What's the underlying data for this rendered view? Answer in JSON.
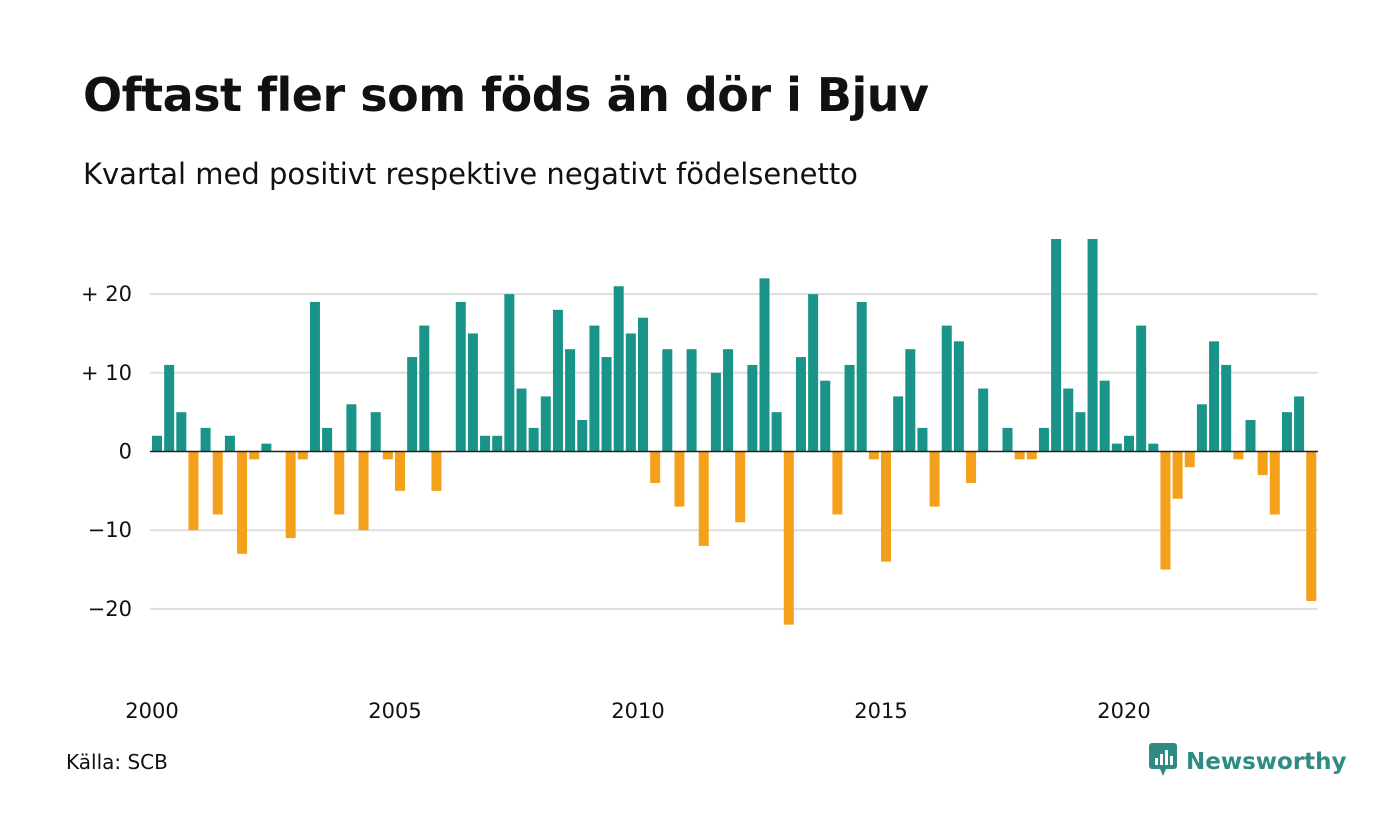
{
  "header": {
    "title": "Oftast fler som föds än dör i Bjuv",
    "subtitle": "Kvartal med positivt respektive negativt födelsenetto"
  },
  "footer": {
    "source": "Källa: SCB",
    "brand": "Newsworthy",
    "brand_icon": "newsworthy-logo-icon"
  },
  "colors": {
    "positive": "#1a9488",
    "negative": "#f5a01a",
    "grid": "#dedede",
    "brand": "#2e8c84"
  },
  "chart_data": {
    "type": "bar",
    "title": "Oftast fler som föds än dör i Bjuv",
    "subtitle": "Kvartal med positivt respektive negativt födelsenetto",
    "xlabel": "",
    "ylabel": "",
    "ylim": [
      -27,
      27
    ],
    "grid": true,
    "x_start": "2000 Q1",
    "x_ticks": [
      "2000",
      "2005",
      "2010",
      "2015",
      "2020"
    ],
    "y_ticks": [
      {
        "value": 20,
        "label": "+ 20"
      },
      {
        "value": 10,
        "label": "+ 10"
      },
      {
        "value": 0,
        "label": "0"
      },
      {
        "value": -10,
        "label": "−10"
      },
      {
        "value": -20,
        "label": "−20"
      }
    ],
    "values": [
      2,
      11,
      5,
      -10,
      3,
      -8,
      2,
      -13,
      -1,
      1,
      0,
      -11,
      -1,
      19,
      3,
      -8,
      6,
      -10,
      5,
      -1,
      -5,
      12,
      16,
      -5,
      0,
      19,
      15,
      2,
      2,
      20,
      8,
      3,
      7,
      18,
      13,
      4,
      16,
      12,
      21,
      15,
      17,
      -4,
      13,
      -7,
      13,
      -12,
      10,
      13,
      -9,
      11,
      22,
      5,
      -22,
      12,
      20,
      9,
      -8,
      11,
      19,
      -1,
      -14,
      7,
      13,
      3,
      -7,
      16,
      14,
      -4,
      8,
      0,
      3,
      -1,
      -1,
      3,
      27,
      8,
      5,
      27,
      9,
      1,
      2,
      16,
      1,
      -15,
      -6,
      -2,
      6,
      14,
      11,
      -1,
      4,
      -3,
      -8,
      5,
      7,
      -19
    ]
  }
}
